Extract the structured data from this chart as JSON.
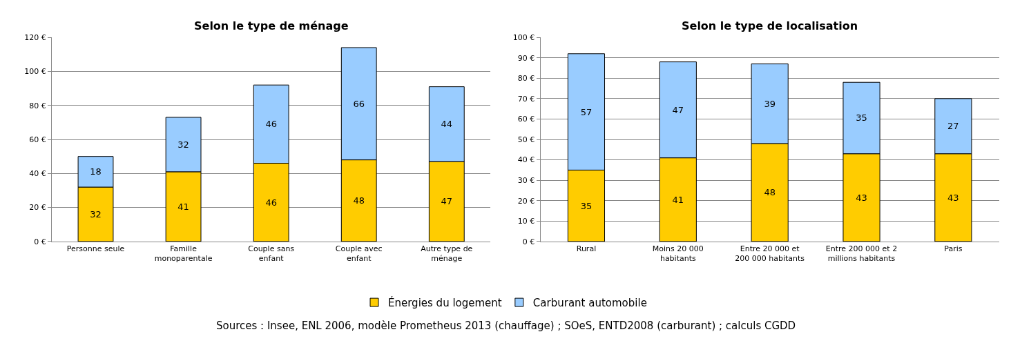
{
  "chart_data": [
    {
      "type": "bar",
      "title": "Selon le type de ménage",
      "stacked": true,
      "data_labels": true,
      "grid": "y",
      "legend": "bottom",
      "categories": [
        "Personne seule",
        "Famille monoparentale",
        "Couple sans enfant",
        "Couple avec enfant",
        "Autre type de ménage"
      ],
      "series": [
        {
          "name": "Énergies du logement",
          "color": "#ffcc00",
          "values": [
            32,
            41,
            46,
            48,
            47
          ]
        },
        {
          "name": "Carburant automobile",
          "color": "#99ccff",
          "values": [
            18,
            32,
            46,
            66,
            44
          ]
        }
      ],
      "ylim": [
        0,
        120
      ],
      "yticks": [
        {
          "value": 0,
          "label": "0 €"
        },
        {
          "value": 20,
          "label": "20 €"
        },
        {
          "value": 40,
          "label": "40 €"
        },
        {
          "value": 60,
          "label": "60 €"
        },
        {
          "value": 80,
          "label": "80 €"
        },
        {
          "value": 100,
          "label": "100 €"
        },
        {
          "value": 120,
          "label": "120 €"
        }
      ],
      "annotations": [
        "Sources : Insee, ENL 2006, modèle Prometheus 2013 (chauffage) ; SOeS, ENTD2008 (carburant) ; calculs CGDD"
      ]
    },
    {
      "type": "bar",
      "title": "Selon le type de localisation",
      "stacked": true,
      "data_labels": true,
      "grid": "y",
      "legend": "bottom",
      "categories": [
        "Rural",
        "Moins 20 000 habitants",
        "Entre 20 000 et 200 000 habitants",
        "Entre 200 000 et 2 millions habitants",
        "Paris"
      ],
      "series": [
        {
          "name": "Énergies du logement",
          "color": "#ffcc00",
          "values": [
            35,
            41,
            48,
            43,
            43
          ]
        },
        {
          "name": "Carburant automobile",
          "color": "#99ccff",
          "values": [
            57,
            47,
            39,
            35,
            27
          ]
        }
      ],
      "ylim": [
        0,
        100
      ],
      "yticks": [
        {
          "value": 0,
          "label": "0 €"
        },
        {
          "value": 10,
          "label": "10 €"
        },
        {
          "value": 20,
          "label": "20 €"
        },
        {
          "value": 30,
          "label": "30 €"
        },
        {
          "value": 40,
          "label": "40 €"
        },
        {
          "value": 50,
          "label": "50 €"
        },
        {
          "value": 60,
          "label": "60 €"
        },
        {
          "value": 70,
          "label": "70 €"
        },
        {
          "value": 80,
          "label": "80 €"
        },
        {
          "value": 90,
          "label": "90 €"
        },
        {
          "value": 100,
          "label": "100 €"
        }
      ]
    }
  ]
}
